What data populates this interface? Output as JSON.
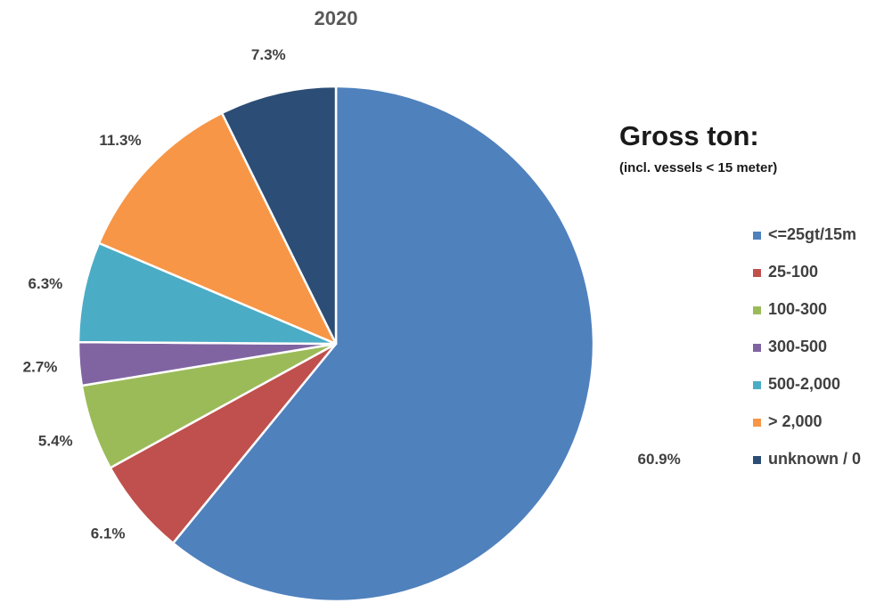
{
  "chart_data": {
    "type": "pie",
    "title": "2020",
    "legend_title": "Gross ton:",
    "legend_subtitle": "(incl. vessels < 15 meter)",
    "legend_position": "right",
    "categories": [
      "<=25gt/15m",
      "25-100",
      "100-300",
      "300-500",
      "500-2,000",
      "> 2,000",
      "unknown / 0"
    ],
    "values": [
      60.9,
      6.1,
      5.4,
      2.7,
      6.3,
      11.3,
      7.3
    ],
    "value_labels": [
      "60.9%",
      "6.1%",
      "5.4%",
      "2.7%",
      "6.3%",
      "11.3%",
      "7.3%"
    ],
    "colors": [
      "#4F81BD",
      "#C0504D",
      "#9BBB59",
      "#8064A2",
      "#4BACC6",
      "#F79646",
      "#2C4D75"
    ]
  }
}
